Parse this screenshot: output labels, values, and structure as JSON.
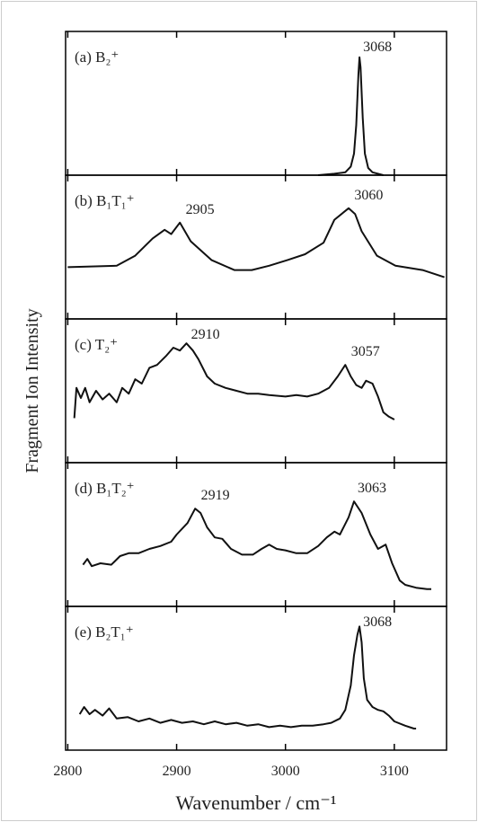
{
  "chart_data": [
    {
      "type": "line",
      "title": "(a) B₂⁺",
      "ylabel": "Fragment Ion Intensity",
      "color": "#111111",
      "xlim": [
        2798,
        3148
      ],
      "ylim": [
        0,
        1
      ],
      "x": [
        3030,
        3045,
        3055,
        3060,
        3063,
        3065,
        3067,
        3068,
        3069,
        3071,
        3073,
        3076,
        3080,
        3090
      ],
      "values": [
        0.0,
        0.01,
        0.02,
        0.06,
        0.15,
        0.35,
        0.7,
        0.82,
        0.75,
        0.4,
        0.15,
        0.05,
        0.02,
        0.0
      ],
      "annotations": [
        {
          "text": "3068",
          "x": 3068
        }
      ]
    },
    {
      "type": "line",
      "title": "(b) B₁T₁⁺",
      "color": "#111111",
      "xlim": [
        2798,
        3148
      ],
      "ylim": [
        0,
        1
      ],
      "x": [
        2800,
        2845,
        2862,
        2878,
        2889,
        2895,
        2903,
        2913,
        2932,
        2953,
        2969,
        2985,
        3002,
        3018,
        3035,
        3045,
        3058,
        3064,
        3070,
        3084,
        3101,
        3126,
        3146
      ],
      "values": [
        0.36,
        0.37,
        0.44,
        0.56,
        0.62,
        0.59,
        0.67,
        0.54,
        0.41,
        0.34,
        0.34,
        0.37,
        0.41,
        0.45,
        0.53,
        0.69,
        0.77,
        0.73,
        0.61,
        0.44,
        0.37,
        0.34,
        0.29
      ],
      "annotations": [
        {
          "text": "2905",
          "x": 2905
        },
        {
          "text": "3060",
          "x": 3060
        }
      ]
    },
    {
      "type": "line",
      "title": "(c) T₂⁺",
      "color": "#111111",
      "xlim": [
        2798,
        3148
      ],
      "ylim": [
        0,
        1
      ],
      "x": [
        2806,
        2808,
        2812,
        2816,
        2820,
        2826,
        2832,
        2838,
        2845,
        2850,
        2856,
        2862,
        2868,
        2875,
        2882,
        2890,
        2897,
        2903,
        2909,
        2915,
        2920,
        2928,
        2935,
        2945,
        2955,
        2965,
        2975,
        2985,
        3000,
        3010,
        3020,
        3030,
        3040,
        3048,
        3055,
        3060,
        3065,
        3070,
        3074,
        3080,
        3085,
        3090,
        3095,
        3100
      ],
      "values": [
        0.31,
        0.52,
        0.45,
        0.52,
        0.42,
        0.5,
        0.44,
        0.48,
        0.42,
        0.52,
        0.48,
        0.58,
        0.55,
        0.66,
        0.68,
        0.74,
        0.8,
        0.78,
        0.83,
        0.78,
        0.72,
        0.6,
        0.55,
        0.52,
        0.5,
        0.48,
        0.48,
        0.47,
        0.46,
        0.47,
        0.46,
        0.48,
        0.52,
        0.6,
        0.68,
        0.6,
        0.54,
        0.52,
        0.57,
        0.55,
        0.46,
        0.35,
        0.32,
        0.3
      ],
      "annotations": [
        {
          "text": "2910",
          "x": 2910
        },
        {
          "text": "3057",
          "x": 3057
        }
      ]
    },
    {
      "type": "line",
      "title": "(d) B₁T₂⁺",
      "color": "#111111",
      "xlim": [
        2798,
        3148
      ],
      "ylim": [
        0,
        1
      ],
      "x": [
        2814,
        2818,
        2822,
        2830,
        2840,
        2848,
        2856,
        2865,
        2875,
        2885,
        2895,
        2900,
        2910,
        2917,
        2922,
        2928,
        2935,
        2942,
        2950,
        2960,
        2970,
        2978,
        2985,
        2992,
        3000,
        3010,
        3020,
        3030,
        3038,
        3045,
        3050,
        3058,
        3063,
        3070,
        3078,
        3085,
        3092,
        3098,
        3105,
        3110,
        3120,
        3130,
        3134
      ],
      "values": [
        0.29,
        0.33,
        0.28,
        0.3,
        0.29,
        0.35,
        0.37,
        0.37,
        0.4,
        0.42,
        0.45,
        0.5,
        0.58,
        0.68,
        0.65,
        0.55,
        0.48,
        0.47,
        0.4,
        0.36,
        0.36,
        0.4,
        0.43,
        0.4,
        0.39,
        0.37,
        0.37,
        0.42,
        0.48,
        0.52,
        0.5,
        0.62,
        0.73,
        0.65,
        0.5,
        0.4,
        0.43,
        0.3,
        0.18,
        0.15,
        0.13,
        0.12,
        0.12
      ],
      "annotations": [
        {
          "text": "2919",
          "x": 2919
        },
        {
          "text": "3063",
          "x": 3063
        }
      ]
    },
    {
      "type": "line",
      "title": "(e) B₂T₁⁺",
      "xlabel": "Wavenumber / cm⁻¹",
      "color": "#111111",
      "xlim": [
        2798,
        3148
      ],
      "ylim": [
        0,
        1
      ],
      "xticks": [
        2800,
        2900,
        3000,
        3100
      ],
      "x": [
        2811,
        2815,
        2820,
        2825,
        2832,
        2838,
        2845,
        2855,
        2865,
        2875,
        2885,
        2895,
        2905,
        2915,
        2925,
        2935,
        2945,
        2955,
        2965,
        2975,
        2985,
        2995,
        3005,
        3015,
        3025,
        3035,
        3042,
        3050,
        3055,
        3060,
        3063,
        3066,
        3068,
        3070,
        3072,
        3075,
        3080,
        3085,
        3090,
        3095,
        3100,
        3110,
        3118,
        3120
      ],
      "values": [
        0.25,
        0.3,
        0.25,
        0.28,
        0.24,
        0.29,
        0.22,
        0.23,
        0.2,
        0.22,
        0.19,
        0.21,
        0.19,
        0.2,
        0.18,
        0.2,
        0.18,
        0.19,
        0.17,
        0.18,
        0.16,
        0.17,
        0.16,
        0.17,
        0.17,
        0.18,
        0.19,
        0.22,
        0.28,
        0.45,
        0.66,
        0.8,
        0.86,
        0.75,
        0.5,
        0.35,
        0.3,
        0.28,
        0.27,
        0.24,
        0.2,
        0.17,
        0.15,
        0.15
      ],
      "annotations": [
        {
          "text": "3068",
          "x": 3068
        }
      ]
    }
  ]
}
